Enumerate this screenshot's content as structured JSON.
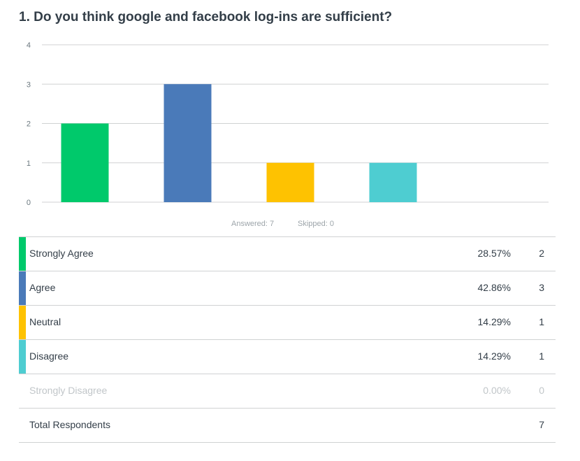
{
  "question": {
    "title": "1. Do you think google and facebook log-ins are sufficient?"
  },
  "summary": {
    "answered": "Answered: 7",
    "skipped": "Skipped: 0"
  },
  "chart_data": {
    "type": "bar",
    "categories": [
      "Strongly Agree",
      "Agree",
      "Neutral",
      "Disagree",
      "Strongly Disagree"
    ],
    "values": [
      2,
      3,
      1,
      1,
      0
    ],
    "colors": [
      "#00c96b",
      "#4a7ab9",
      "#fec201",
      "#4ecdd1",
      "#e94e3c"
    ],
    "title": "",
    "xlabel": "",
    "ylabel": "",
    "ylim": [
      0,
      4
    ],
    "yticks": [
      "0",
      "1",
      "2",
      "3",
      "4"
    ],
    "grid": true,
    "legend": "none"
  },
  "table": {
    "rows": [
      {
        "label": "Strongly Agree",
        "percent": "28.57%",
        "count": "2",
        "color": "#00c96b"
      },
      {
        "label": "Agree",
        "percent": "42.86%",
        "count": "3",
        "color": "#4a7ab9"
      },
      {
        "label": "Neutral",
        "percent": "14.29%",
        "count": "1",
        "color": "#fec201"
      },
      {
        "label": "Disagree",
        "percent": "14.29%",
        "count": "1",
        "color": "#4ecdd1"
      },
      {
        "label": "Strongly Disagree",
        "percent": "0.00%",
        "count": "0",
        "color": ""
      }
    ],
    "total": {
      "label": "Total Respondents",
      "count": "7"
    }
  }
}
